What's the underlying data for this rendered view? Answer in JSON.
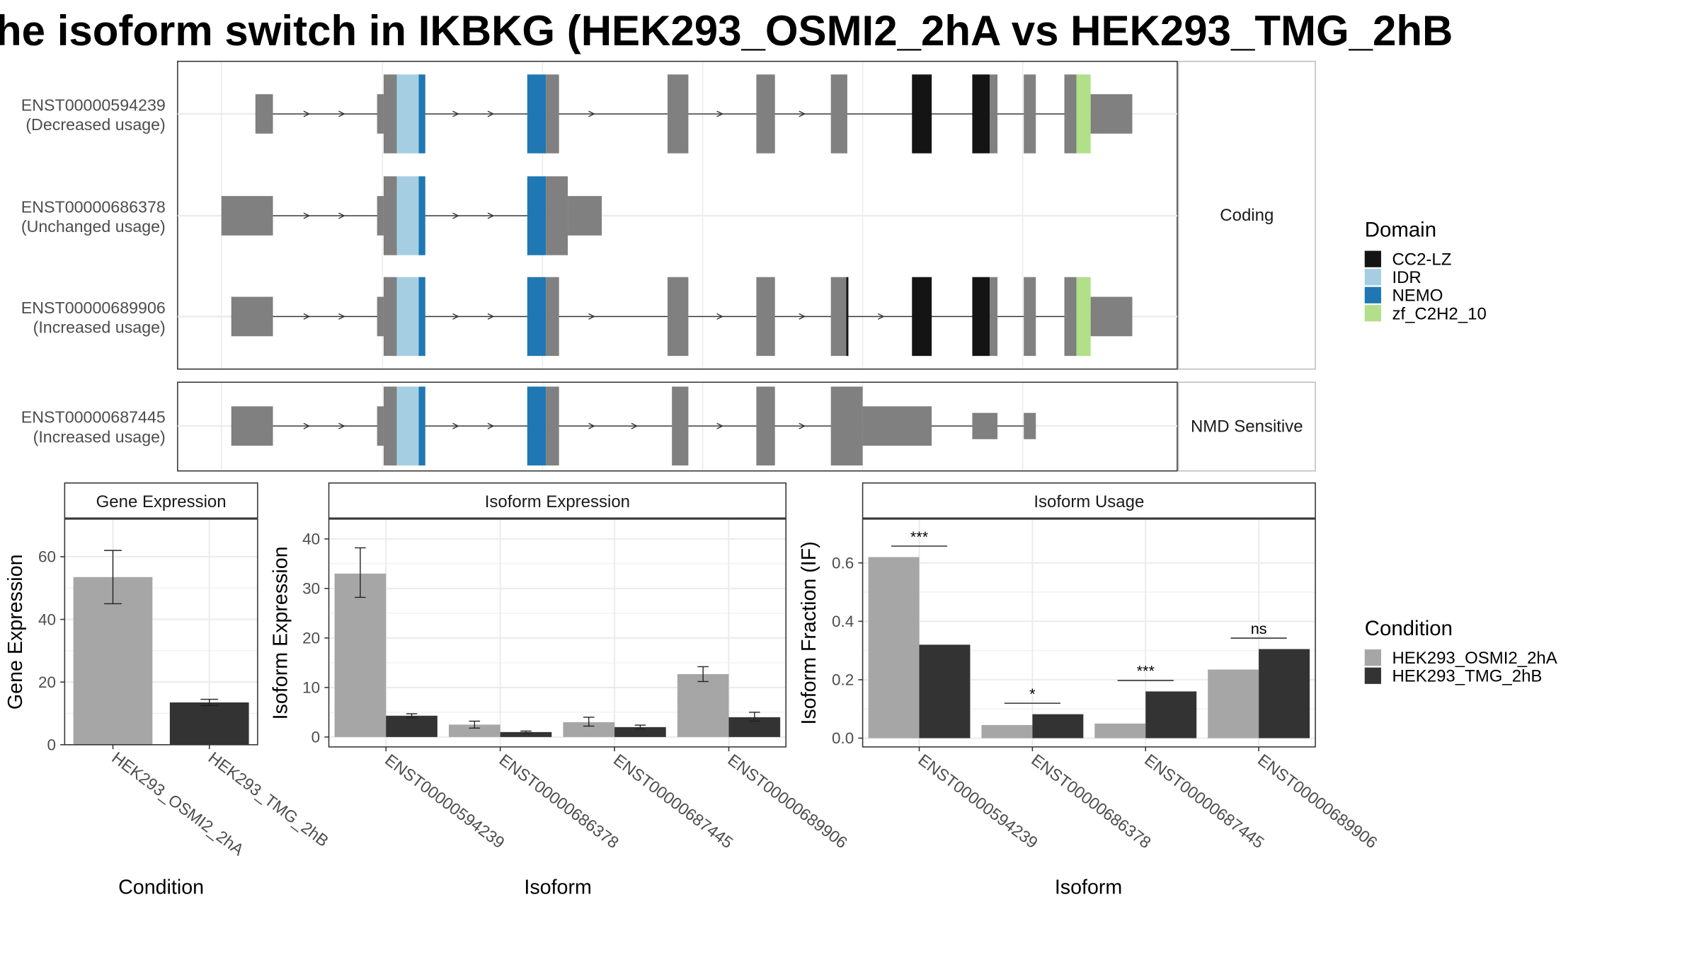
{
  "title": "he isoform switch in IKBKG (HEK293_OSMI2_2hA vs HEK293_TMG_2hB",
  "colors": {
    "CC2-LZ": "#141414",
    "IDR": "#a6cee3",
    "NEMO": "#1f78b4",
    "zf_C2H2_10": "#b2df8a",
    "exon": "#808080",
    "condA": "#a6a6a6",
    "condB": "#333333"
  },
  "structure": {
    "facets": [
      {
        "label": "Coding",
        "transcripts": [
          {
            "id": "ENST00000594239",
            "usage": "(Decreased usage)"
          },
          {
            "id": "ENST00000686378",
            "usage": "(Unchanged usage)"
          },
          {
            "id": "ENST00000689906",
            "usage": "(Increased usage)"
          }
        ]
      },
      {
        "label": "NMD Sensitive",
        "transcripts": [
          {
            "id": "ENST00000687445",
            "usage": "(Increased usage)"
          }
        ]
      }
    ]
  },
  "legend_domain": {
    "title": "Domain",
    "items": [
      "CC2-LZ",
      "IDR",
      "NEMO",
      "zf_C2H2_10"
    ]
  },
  "legend_condition": {
    "title": "Condition",
    "items": [
      "HEK293_OSMI2_2hA",
      "HEK293_TMG_2hB"
    ]
  },
  "chart_data": [
    {
      "type": "bar",
      "title": "Gene Expression",
      "xlabel": "Condition",
      "ylabel": "Gene Expression",
      "categories": [
        "HEK293_OSMI2_2hA",
        "HEK293_TMG_2hB"
      ],
      "values": [
        53.5,
        13.5
      ],
      "error_low": [
        45,
        12.5
      ],
      "error_high": [
        62,
        14.5
      ],
      "ylim": [
        0,
        72
      ],
      "yticks": [
        0,
        20,
        40,
        60
      ]
    },
    {
      "type": "bar",
      "title": "Isoform Expression",
      "xlabel": "Isoform",
      "ylabel": "Isoform Expression",
      "categories": [
        "ENST00000594239",
        "ENST00000686378",
        "ENST00000687445",
        "ENST00000689906"
      ],
      "series": [
        {
          "name": "HEK293_OSMI2_2hA",
          "values": [
            33,
            2.5,
            3,
            12.7
          ],
          "error_low": [
            28.2,
            1.8,
            2.2,
            11.2
          ],
          "error_high": [
            38.2,
            3.2,
            4,
            14.2
          ]
        },
        {
          "name": "HEK293_TMG_2hB",
          "values": [
            4.3,
            1.0,
            2.0,
            4.0
          ],
          "error_low": [
            3.9,
            0.8,
            1.6,
            3.2
          ],
          "error_high": [
            4.7,
            1.2,
            2.4,
            5.0
          ]
        }
      ],
      "ylim": [
        -2,
        44
      ],
      "yticks": [
        0,
        10,
        20,
        30,
        40
      ]
    },
    {
      "type": "bar",
      "title": "Isoform Usage",
      "xlabel": "Isoform",
      "ylabel": "Isoform Fraction (IF)",
      "categories": [
        "ENST00000594239",
        "ENST00000686378",
        "ENST00000687445",
        "ENST00000689906"
      ],
      "series": [
        {
          "name": "HEK293_OSMI2_2hA",
          "values": [
            0.62,
            0.045,
            0.05,
            0.235
          ]
        },
        {
          "name": "HEK293_TMG_2hB",
          "values": [
            0.32,
            0.082,
            0.16,
            0.305
          ]
        }
      ],
      "significance": [
        "***",
        "*",
        "***",
        "ns"
      ],
      "ylim": [
        -0.03,
        0.75
      ],
      "yticks": [
        "0.0",
        "0.2",
        "0.4",
        "0.6"
      ]
    }
  ]
}
